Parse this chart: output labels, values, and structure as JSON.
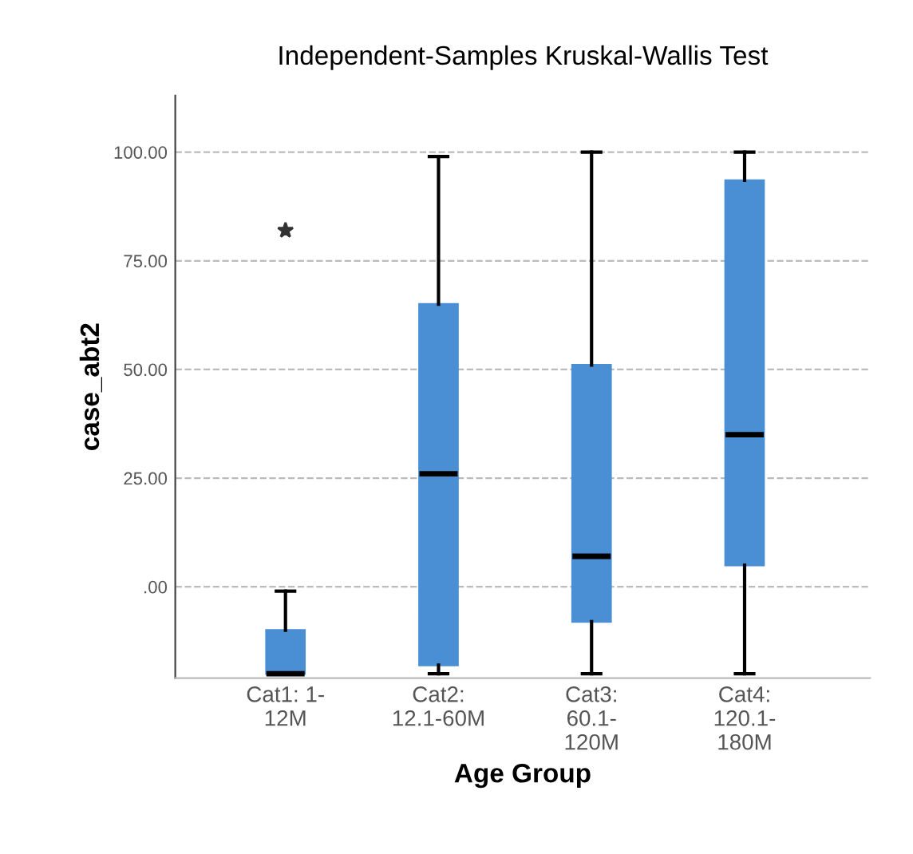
{
  "chart_data": {
    "type": "box",
    "title": "Independent-Samples Kruskal-Wallis Test",
    "xlabel": "Age Group",
    "ylabel": "case_abt2",
    "categories": [
      "Cat1: 1-\n12M",
      "Cat2:\n12.1-60M",
      "Cat3:\n60.1-\n120M",
      "Cat4:\n120.1-\n180M"
    ],
    "series": [
      {
        "color": "#4a8fd4",
        "boxes": [
          {
            "low": -20,
            "q1": -20,
            "median": -20,
            "q3": -10,
            "high": -1,
            "outliers": [
              82
            ]
          },
          {
            "low": -20,
            "q1": -18,
            "median": 26,
            "q3": 65,
            "high": 99
          },
          {
            "low": -20,
            "q1": -8,
            "median": 7,
            "q3": 51,
            "high": 100
          },
          {
            "low": -20,
            "q1": 5,
            "median": 35,
            "q3": 93.5,
            "high": 100
          }
        ]
      }
    ],
    "ylim": [
      -21,
      113
    ],
    "yticks": [
      {
        "value": 0,
        "label": ".00"
      },
      {
        "value": 25,
        "label": "25.00"
      },
      {
        "value": 50,
        "label": "50.00"
      },
      {
        "value": 75,
        "label": "75.00"
      },
      {
        "value": 100,
        "label": "100.00"
      }
    ],
    "grid": "y",
    "legend": false
  }
}
